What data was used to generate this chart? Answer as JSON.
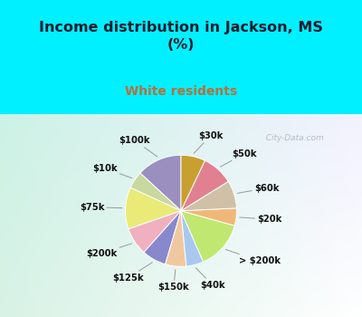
{
  "title": "Income distribution in Jackson, MS\n(%)",
  "subtitle": "White residents",
  "title_color": "#1a1a2e",
  "subtitle_color": "#b8703a",
  "bg_top": "#00f0ff",
  "watermark": "  City-Data.com",
  "labels": [
    "$100k",
    "$10k",
    "$75k",
    "$200k",
    "$125k",
    "$150k",
    "$40k",
    "> $200k",
    "$20k",
    "$60k",
    "$50k",
    "$30k"
  ],
  "values": [
    13,
    5,
    12,
    8,
    7,
    6,
    5,
    14,
    5,
    8,
    9,
    7
  ],
  "colors": [
    "#9b8fc0",
    "#c8d8a0",
    "#eaea78",
    "#f0b0c0",
    "#8888cc",
    "#f0c8a0",
    "#a8c8f0",
    "#c0e870",
    "#f0b878",
    "#d0c0a8",
    "#e08090",
    "#c8a030"
  ],
  "startangle": 90,
  "label_r": 1.38,
  "connector_r": 1.06
}
